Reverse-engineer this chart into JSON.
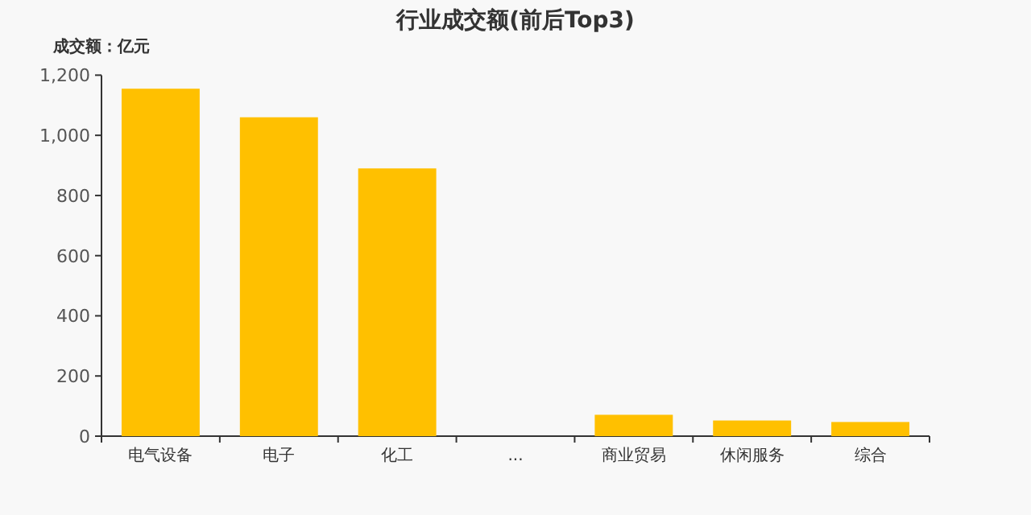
{
  "chart_data": {
    "type": "bar",
    "title": "行业成交额(前后Top3)",
    "ylabel": "成交额：亿元",
    "categories": [
      "电气设备",
      "电子",
      "化工",
      "...",
      "商业贸易",
      "休闲服务",
      "综合"
    ],
    "values": [
      1155,
      1060,
      890,
      null,
      71,
      52,
      47
    ],
    "color": "#ffc000",
    "ylim": [
      0,
      1200
    ],
    "yticks": [
      0,
      200,
      400,
      600,
      800,
      {
        "value": 1000,
        "label": "1,000"
      },
      {
        "value": 1200,
        "label": "1,200"
      }
    ],
    "grid": false
  }
}
